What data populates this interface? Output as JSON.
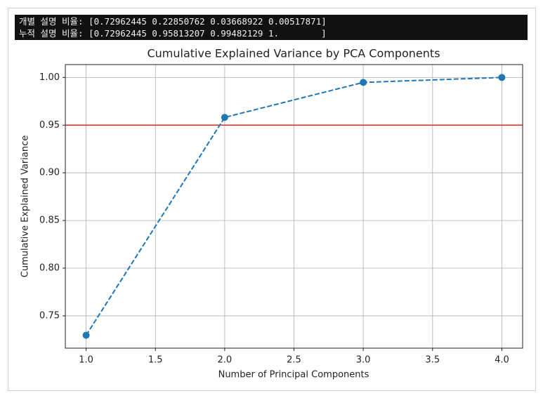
{
  "console": {
    "lines": [
      "개별 설명 비율: [0.72962445 0.22850762 0.03668922 0.00517871]",
      "누적 설명 비율: [0.72962445 0.95813207 0.99482129 1.        ]"
    ]
  },
  "chart_data": {
    "type": "line",
    "title": "Cumulative Explained Variance by PCA Components",
    "xlabel": "Number of Principal Components",
    "ylabel": "Cumulative Explained Variance",
    "x": [
      1,
      2,
      3,
      4
    ],
    "values": [
      0.72962445,
      0.95813207,
      0.99482129,
      1.0
    ],
    "color": "#1f77b4",
    "linestyle": "dashed",
    "marker": "o",
    "xlim": [
      0.85,
      4.15
    ],
    "ylim": [
      0.7161,
      1.0135
    ],
    "xticks": [
      {
        "value": 1,
        "label": "1.0"
      },
      {
        "value": 1.5,
        "label": "1.5"
      },
      {
        "value": 2,
        "label": "2.0"
      },
      {
        "value": 2.5,
        "label": "2.5"
      },
      {
        "value": 3,
        "label": "3.0"
      },
      {
        "value": 3.5,
        "label": "3.5"
      },
      {
        "value": 4,
        "label": "4.0"
      }
    ],
    "yticks": [
      0.75,
      {
        "value": 0.8,
        "label": "0.80"
      },
      0.85,
      {
        "value": 0.9,
        "label": "0.90"
      },
      0.95,
      {
        "value": 1.0,
        "label": "1.00"
      }
    ],
    "hlines": [
      {
        "value": 0.95,
        "color": "#e8271f"
      }
    ],
    "grid": true
  }
}
